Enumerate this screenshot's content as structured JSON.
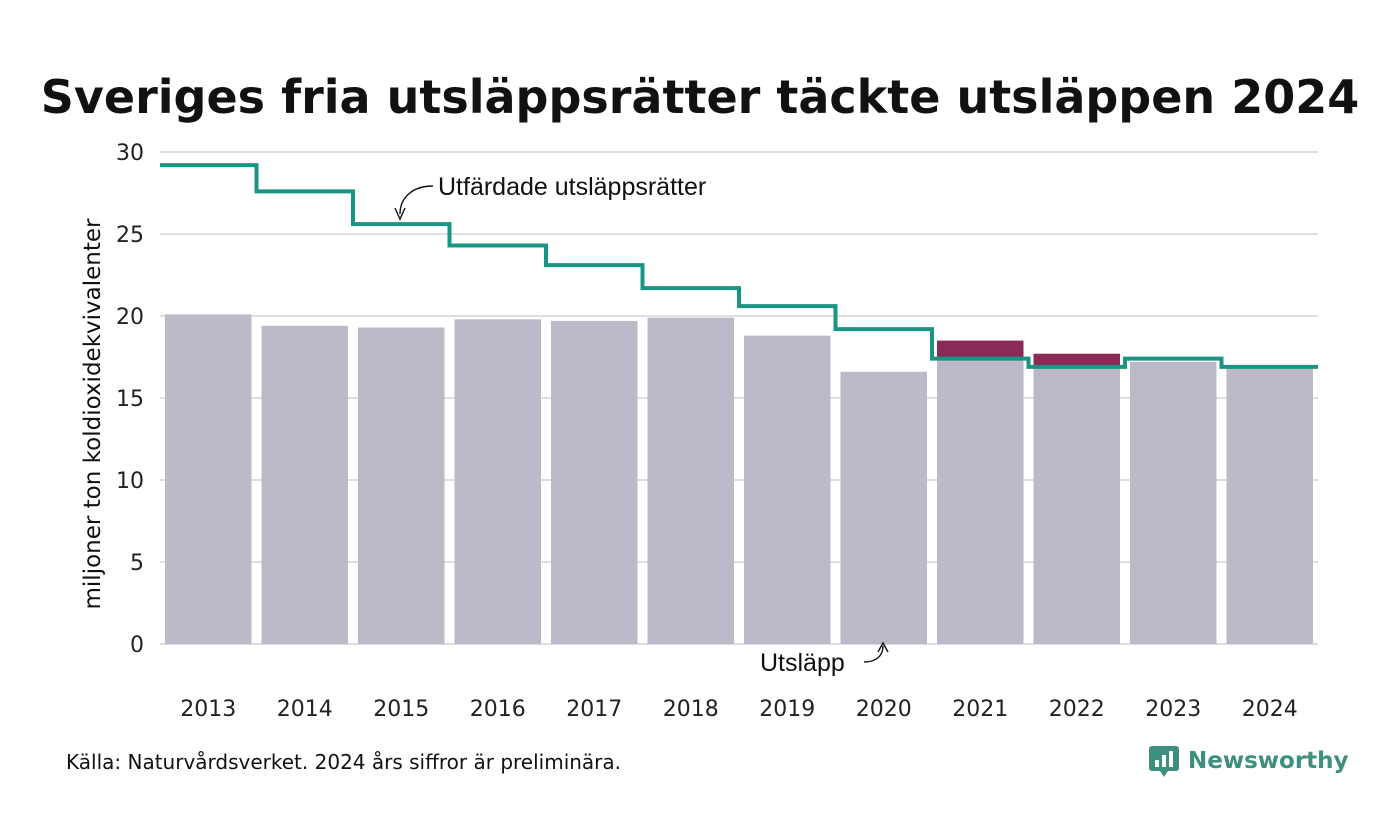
{
  "title": "Sveriges fria utsläppsrätter täckte utsläppen 2024",
  "source": "Källa: Naturvårdsverket. 2024 års siffror är preliminära.",
  "brand": {
    "name": "Newsworthy",
    "icon": "bar-chart-logo-icon"
  },
  "colors": {
    "bars": "#bcbac9",
    "excess": "#8b2a57",
    "line": "#1b9484",
    "grid": "#dedede",
    "brand": "#3f8f7f"
  },
  "chart_data": {
    "type": "bar",
    "categories": [
      "2013",
      "2014",
      "2015",
      "2016",
      "2017",
      "2018",
      "2019",
      "2020",
      "2021",
      "2022",
      "2023",
      "2024"
    ],
    "series": [
      {
        "name": "Utsläpp",
        "type": "bar",
        "values": [
          20.1,
          19.4,
          19.3,
          19.8,
          19.7,
          19.9,
          18.8,
          16.6,
          18.5,
          17.7,
          17.2,
          16.9
        ]
      },
      {
        "name": "Utfärdade utsläppsrätter",
        "type": "step-line",
        "values": [
          29.2,
          27.6,
          25.6,
          24.3,
          23.1,
          21.7,
          20.6,
          19.2,
          17.4,
          16.9,
          17.4,
          16.9
        ]
      }
    ],
    "annotations": [
      "Utfärdade utsläppsrätter",
      "Utsläpp"
    ],
    "ylabel": "miljoner ton koldioxidekvivalenter",
    "xlabel": "",
    "ylim": [
      0,
      30
    ],
    "yticks": [
      0,
      5,
      10,
      15,
      20,
      25,
      30
    ],
    "grid": true
  }
}
